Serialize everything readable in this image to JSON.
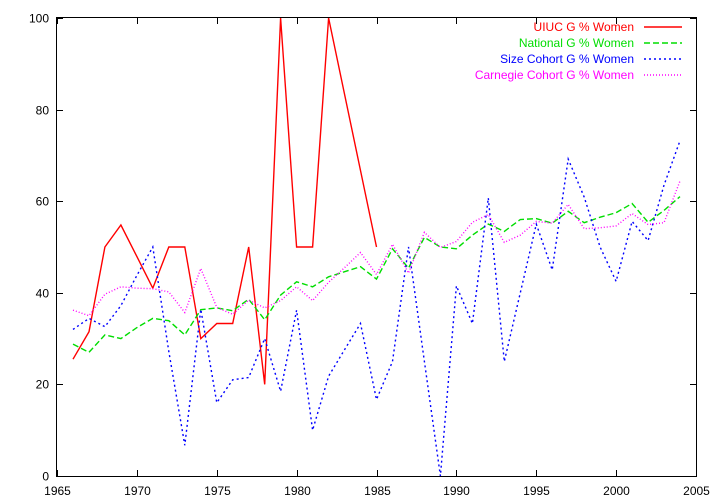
{
  "chart_data": {
    "type": "line",
    "title": "",
    "xlabel": "",
    "ylabel": "",
    "xlim": [
      1965,
      2005
    ],
    "ylim": [
      0,
      100
    ],
    "xticks": [
      1965,
      1970,
      1975,
      1980,
      1985,
      1990,
      1995,
      2000,
      2005
    ],
    "yticks": [
      0,
      20,
      40,
      60,
      80,
      100
    ],
    "grid": false,
    "legend_position": "top-right",
    "series": [
      {
        "name": "UIUC G % Women",
        "color": "#ff0000",
        "dash": "solid",
        "x": [
          1966,
          1967,
          1968,
          1969,
          1970,
          1971,
          1972,
          1973,
          1974,
          1975,
          1976,
          1977,
          1978,
          1979,
          1980,
          1981,
          1982,
          1983,
          1984,
          1985
        ],
        "y": [
          25.5,
          31.5,
          50,
          54.8,
          47.9,
          41,
          50,
          50,
          30,
          33.3,
          33.3,
          50,
          20,
          100,
          50,
          50,
          100,
          83.3,
          66.7,
          50
        ]
      },
      {
        "name": "National G % Women",
        "color": "#00dd00",
        "dash": "dashed",
        "x": [
          1966,
          1967,
          1968,
          1969,
          1970,
          1971,
          1972,
          1973,
          1974,
          1975,
          1976,
          1977,
          1978,
          1979,
          1980,
          1981,
          1982,
          1983,
          1984,
          1985,
          1986,
          1987,
          1988,
          1989,
          1990,
          1991,
          1992,
          1993,
          1994,
          1995,
          1996,
          1997,
          1998,
          1999,
          2000,
          2001,
          2002,
          2003,
          2004
        ],
        "y": [
          28.8,
          27,
          30.8,
          30,
          32.4,
          34.4,
          33.9,
          30.8,
          36.3,
          36.7,
          36.1,
          38.6,
          34.1,
          39.5,
          42.4,
          41.3,
          43.5,
          44.6,
          45.7,
          43,
          49.6,
          45.4,
          52.1,
          50,
          49.6,
          52.6,
          55,
          53.4,
          56,
          56.2,
          55.2,
          57.8,
          55.3,
          56.5,
          57.5,
          59.5,
          55.4,
          58,
          61
        ]
      },
      {
        "name": "Size Cohort G % Women",
        "color": "#0000ff",
        "dash": "dotted",
        "x": [
          1966,
          1967,
          1968,
          1969,
          1970,
          1971,
          1972,
          1973,
          1974,
          1975,
          1976,
          1977,
          1978,
          1979,
          1980,
          1981,
          1982,
          1983,
          1984,
          1985,
          1986,
          1987,
          1988,
          1989,
          1990,
          1991,
          1992,
          1993,
          1994,
          1995,
          1996,
          1997,
          1998,
          1999,
          2000,
          2001,
          2002,
          2003,
          2004
        ],
        "y": [
          32,
          34.4,
          32.6,
          37.2,
          43.8,
          50,
          27.2,
          6.7,
          36.4,
          16,
          21,
          21.5,
          30,
          18.5,
          36.2,
          10,
          21.8,
          27.6,
          33.3,
          16.7,
          25,
          50,
          25,
          0,
          41.5,
          33.3,
          60.7,
          25,
          40,
          55,
          45,
          69.2,
          60.9,
          50,
          42.5,
          55.6,
          51.4,
          63.5,
          73.2
        ]
      },
      {
        "name": "Carnegie Cohort G % Women",
        "color": "#ff00ff",
        "dash": "dotted-fine",
        "x": [
          1966,
          1967,
          1968,
          1969,
          1970,
          1971,
          1972,
          1973,
          1974,
          1975,
          1976,
          1977,
          1978,
          1979,
          1980,
          1981,
          1982,
          1983,
          1984,
          1985,
          1986,
          1987,
          1988,
          1989,
          1990,
          1991,
          1992,
          1993,
          1994,
          1995,
          1996,
          1997,
          1998,
          1999,
          2000,
          2001,
          2002,
          2003,
          2004
        ],
        "y": [
          36.2,
          35,
          39.7,
          41.3,
          41,
          40.9,
          40.2,
          35.7,
          45.3,
          36.8,
          35.3,
          38.4,
          36.7,
          38.3,
          41.3,
          38.3,
          42.3,
          45.5,
          48.8,
          44,
          50.6,
          44.3,
          53.2,
          49.9,
          51.2,
          55.4,
          57.1,
          51,
          52.6,
          55.6,
          55.2,
          59.3,
          54,
          54.2,
          54.6,
          57.3,
          54.9,
          55.3,
          64.4
        ]
      }
    ]
  }
}
